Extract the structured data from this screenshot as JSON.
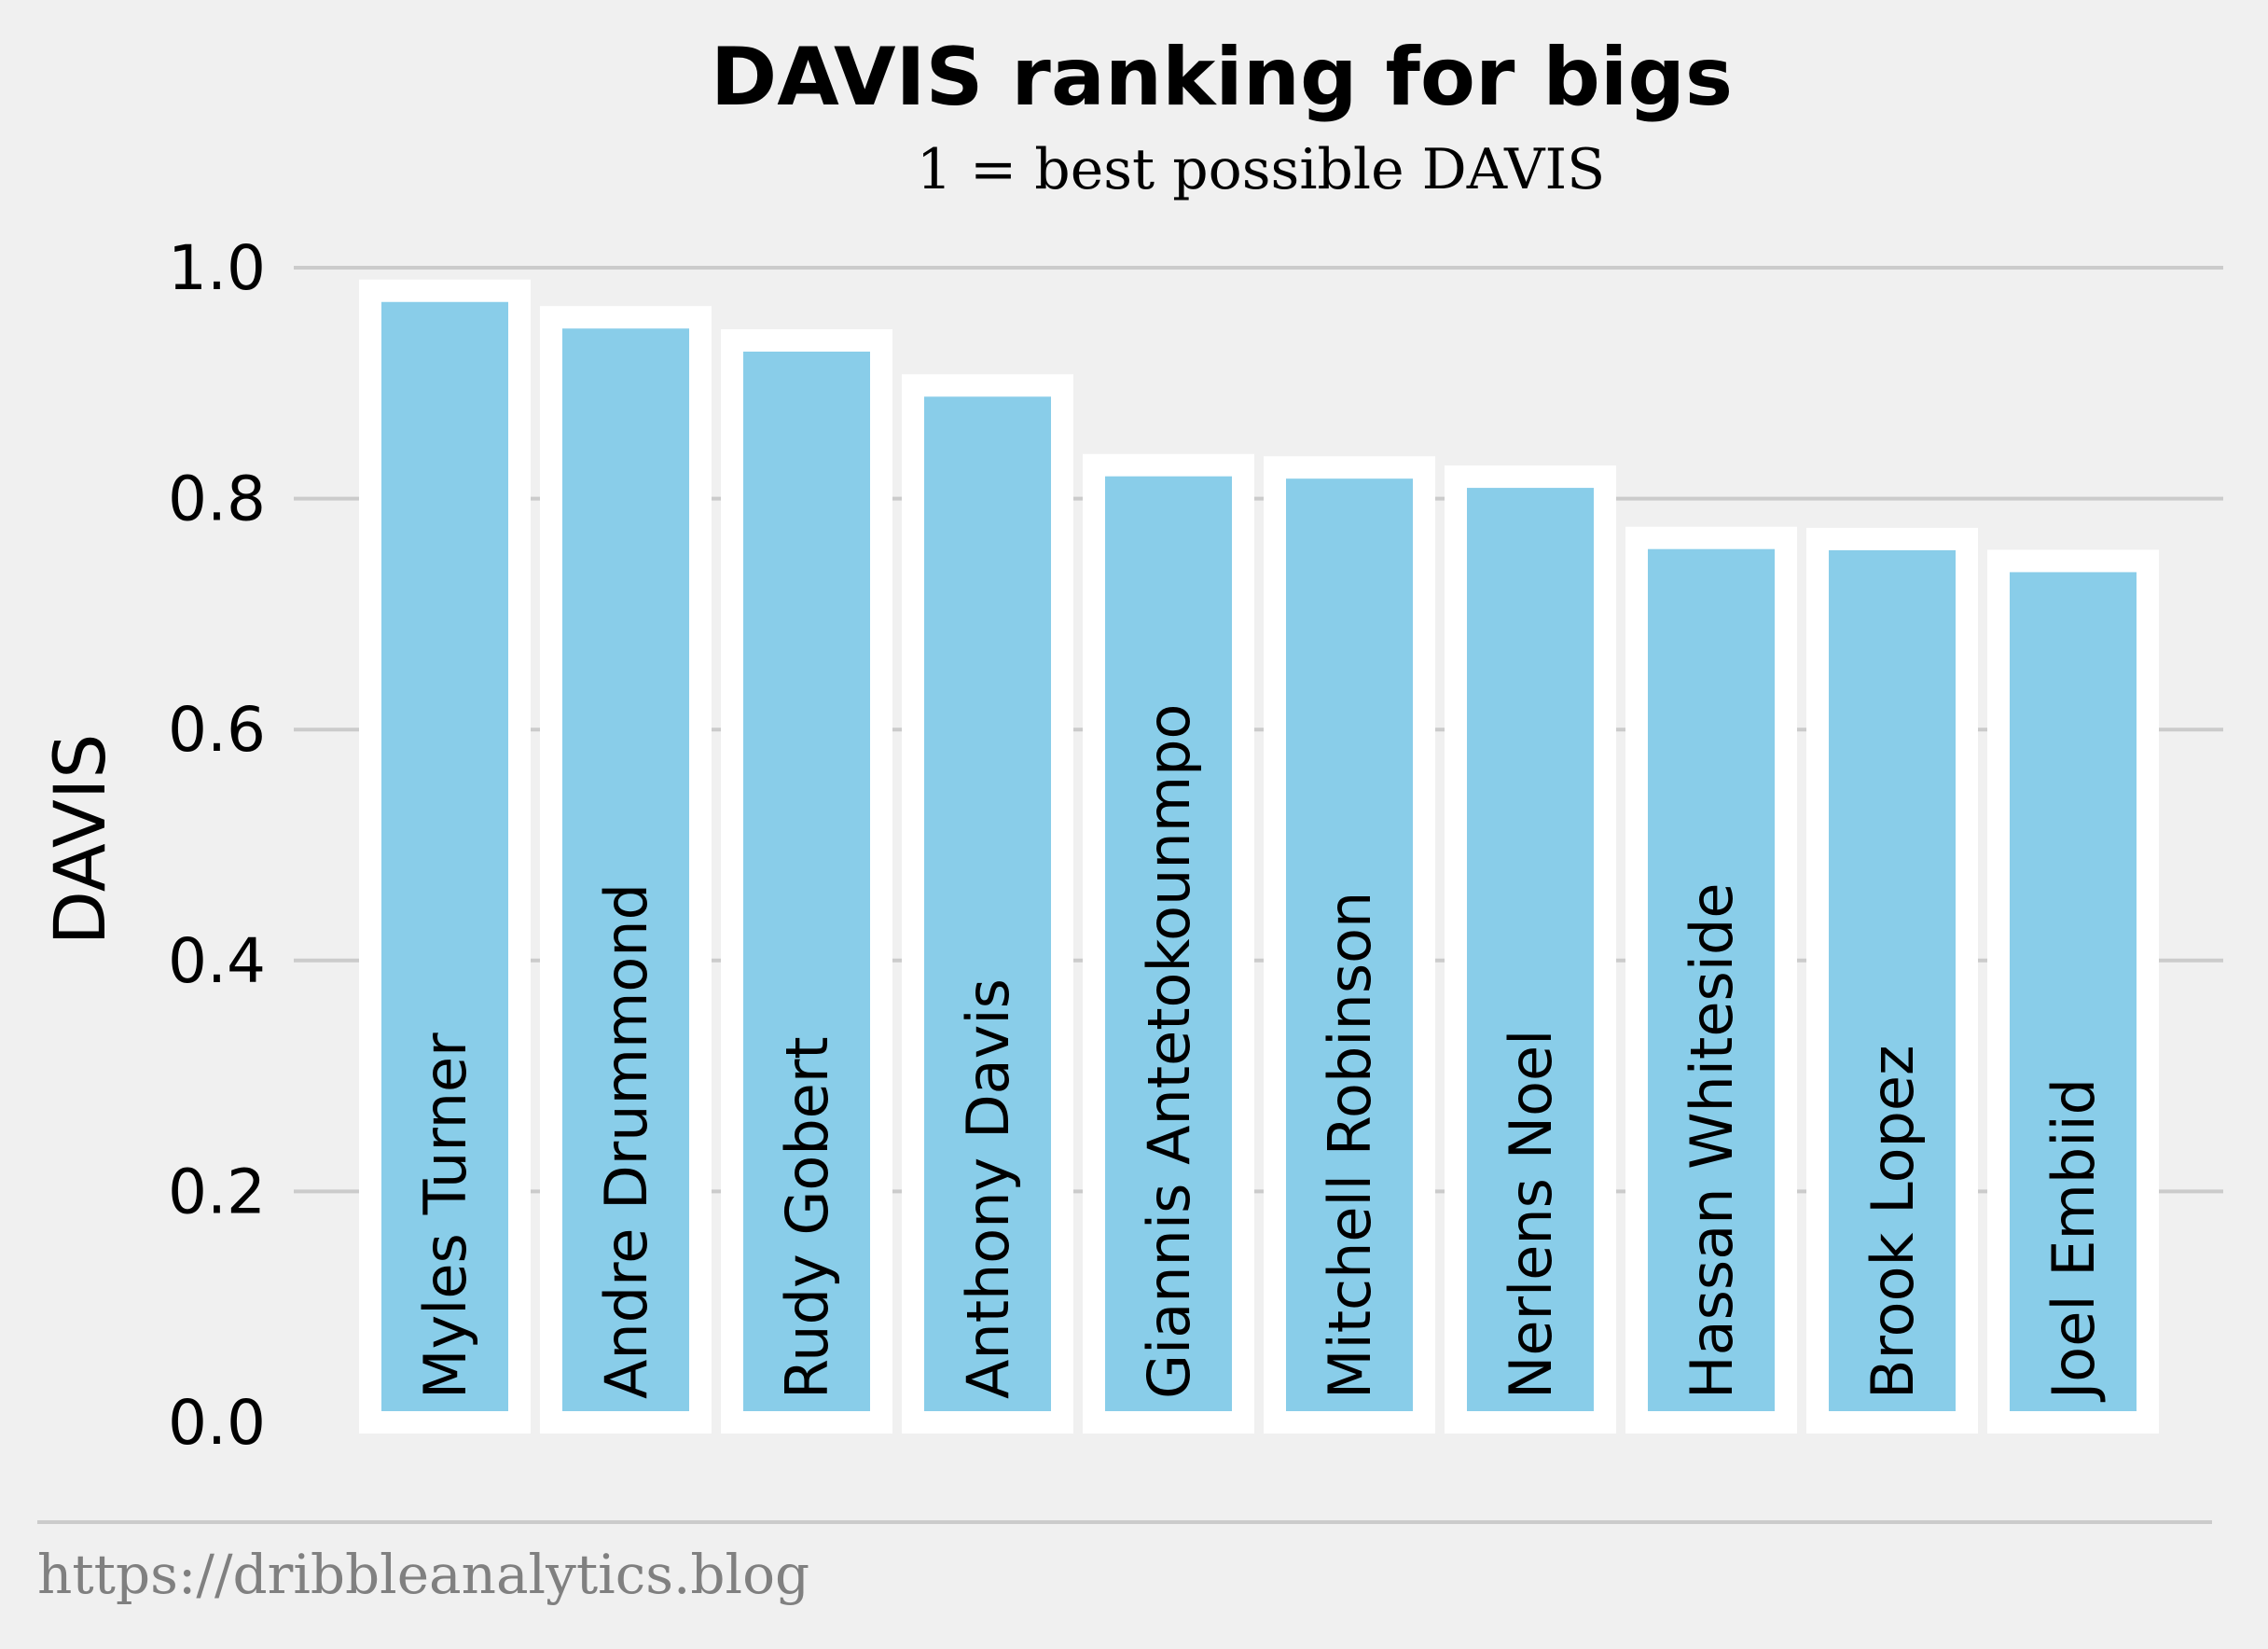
{
  "chart_data": {
    "type": "bar",
    "title": "DAVIS ranking for bigs",
    "subtitle": "1 = best possible DAVIS",
    "ylabel": "DAVIS",
    "xlabel": "",
    "ylim": [
      0,
      1.0
    ],
    "yticks": [
      "0.0",
      "0.2",
      "0.4",
      "0.6",
      "0.8",
      "1.0"
    ],
    "grid": "horizontal",
    "categories": [
      "Myles Turner",
      "Andre Drummond",
      "Rudy Gobert",
      "Anthony Davis",
      "Giannis Antetokounmpo",
      "Mitchell Robinson",
      "Nerlens Noel",
      "Hassan Whiteside",
      "Brook Lopez",
      "Joel Embiid"
    ],
    "values": [
      0.98,
      0.957,
      0.937,
      0.898,
      0.829,
      0.827,
      0.819,
      0.766,
      0.765,
      0.746
    ],
    "bar_color": "#89cde9",
    "bar_edge_color": "#ffffff",
    "source": "https://dribbleanalytics.blog"
  }
}
